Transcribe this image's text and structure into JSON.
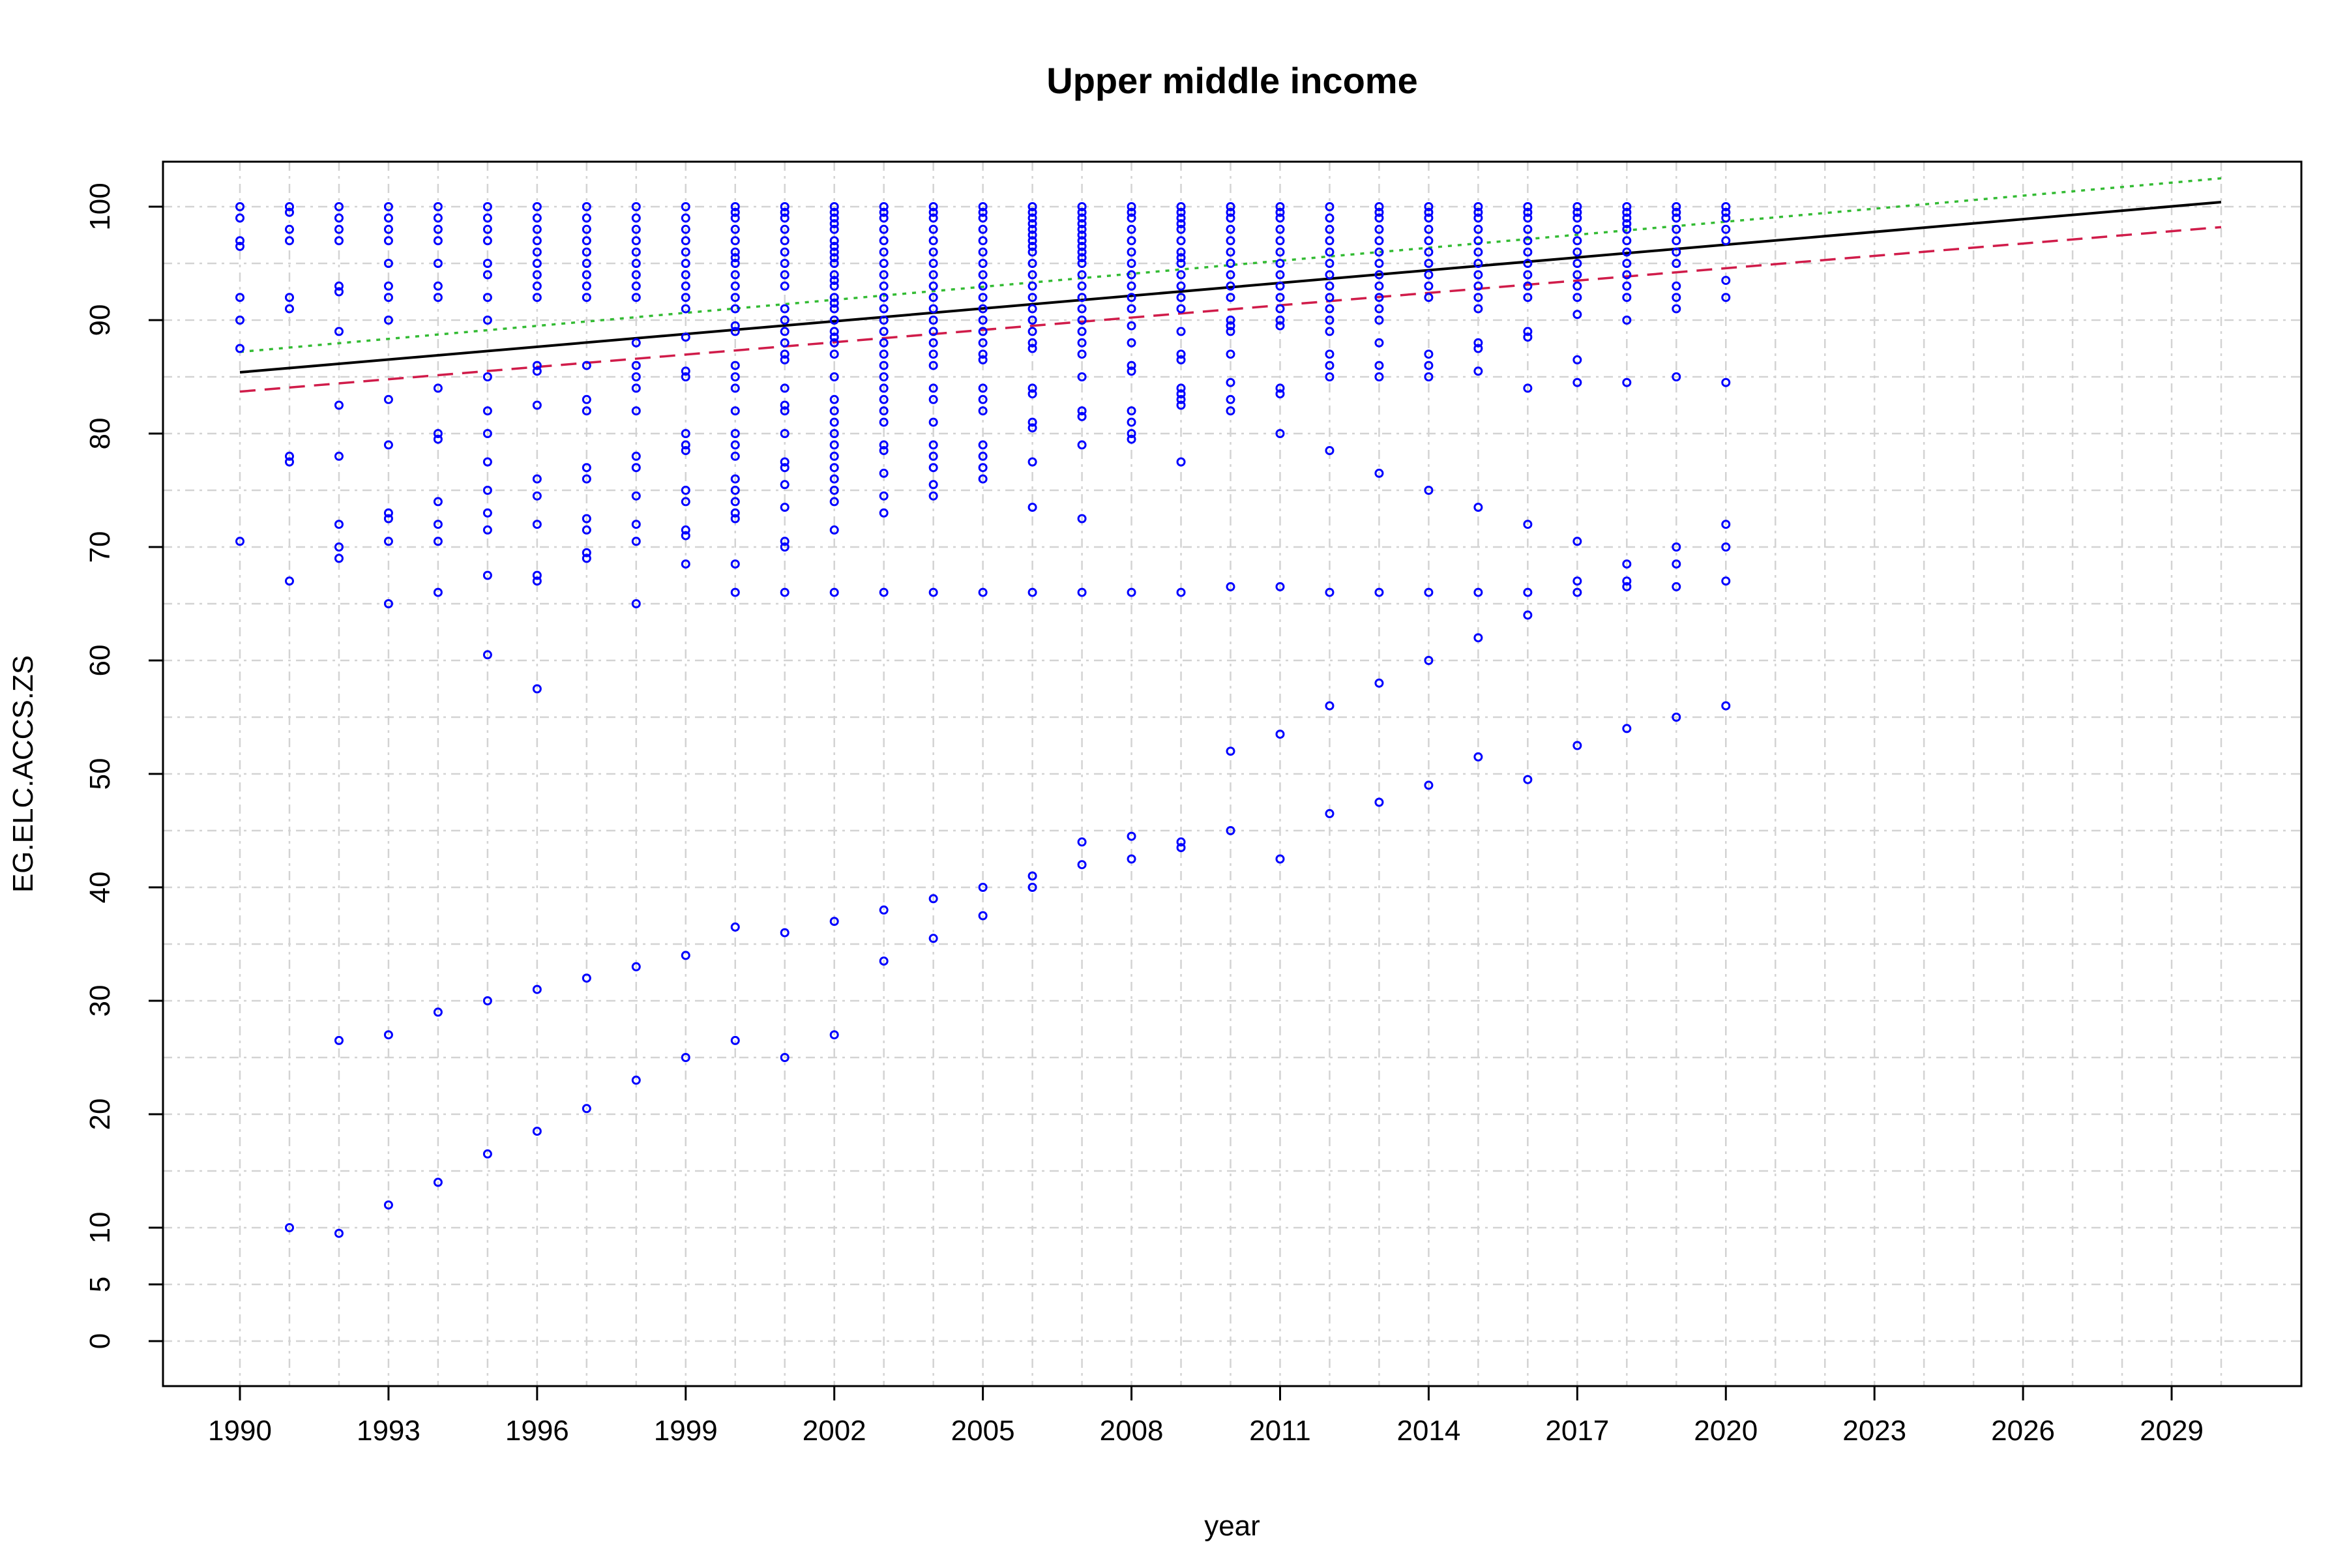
{
  "chart_data": {
    "type": "scatter",
    "title": "Upper middle income",
    "xlabel": "year",
    "ylabel": "EG.ELC.ACCS.ZS",
    "xlim": [
      1990,
      2030
    ],
    "ylim": [
      0,
      100
    ],
    "x_ticks": [
      "1990",
      "1993",
      "1996",
      "1999",
      "2002",
      "2005",
      "2008",
      "2011",
      "2014",
      "2017",
      "2020",
      "2023",
      "2026",
      "2029"
    ],
    "x_tick_values": [
      1990,
      1993,
      1996,
      1999,
      2002,
      2005,
      2008,
      2011,
      2014,
      2017,
      2020,
      2023,
      2026,
      2029
    ],
    "y_ticks": [
      "0",
      "5",
      "10",
      "20",
      "30",
      "40",
      "50",
      "60",
      "70",
      "80",
      "90",
      "100"
    ],
    "y_tick_values": [
      0,
      5,
      10,
      20,
      30,
      40,
      50,
      60,
      70,
      80,
      90,
      100
    ],
    "grid": true,
    "point_color": "#0000ff",
    "points_by_year": {
      "1990": [
        100,
        99,
        97,
        96.5,
        92,
        90,
        87.5,
        70.5
      ],
      "1991": [
        100,
        99.5,
        98,
        97,
        92,
        91,
        78,
        77.5,
        67,
        10
      ],
      "1992": [
        100,
        99,
        98,
        97,
        93,
        92.5,
        89,
        82.5,
        78,
        72,
        70,
        69,
        26.5,
        9.5
      ],
      "1993": [
        100,
        99,
        98,
        97,
        95,
        93,
        92,
        90,
        83,
        79,
        73,
        72.5,
        70.5,
        65,
        27,
        12
      ],
      "1994": [
        100,
        99,
        98,
        97,
        95,
        93,
        92,
        84,
        80,
        79.5,
        74,
        72,
        70.5,
        66,
        29,
        14
      ],
      "1995": [
        100,
        99,
        98,
        97,
        95,
        94,
        92,
        90,
        85,
        82,
        80,
        77.5,
        75,
        73,
        71.5,
        67.5,
        60.5,
        30,
        16.5
      ],
      "1996": [
        100,
        99,
        98,
        97,
        96,
        95,
        94,
        93,
        92,
        86,
        85.5,
        82.5,
        76,
        74.5,
        72,
        67.5,
        67,
        57.5,
        31,
        18.5
      ],
      "1997": [
        100,
        99,
        98,
        97,
        96,
        95,
        94,
        93,
        92,
        86,
        83,
        82,
        77,
        76,
        72.5,
        71.5,
        69.5,
        69,
        32,
        20.5
      ],
      "1998": [
        100,
        99,
        98,
        97,
        96,
        95,
        94,
        93,
        92,
        88,
        86,
        85,
        84,
        82,
        78,
        77,
        74.5,
        72,
        70.5,
        65,
        33,
        23
      ],
      "1999": [
        100,
        99,
        98,
        97,
        96,
        95,
        94,
        93,
        92,
        91,
        88.5,
        85.5,
        85,
        80,
        79,
        78.5,
        75,
        74,
        71.5,
        71,
        68.5,
        34,
        25
      ],
      "2000": [
        100,
        99.5,
        99,
        98,
        97,
        96,
        95.5,
        95,
        94,
        93,
        92,
        91,
        89.5,
        89,
        86,
        85,
        84,
        82,
        80,
        79,
        78,
        76,
        75,
        74,
        73,
        72.5,
        68.5,
        66,
        36.5,
        26.5
      ],
      "2001": [
        100,
        99.5,
        99,
        98,
        97,
        96,
        95,
        94,
        93,
        91,
        90,
        89,
        88,
        87,
        86.5,
        84,
        82.5,
        82,
        80,
        77.5,
        77,
        75.5,
        73.5,
        70.5,
        70,
        66,
        36,
        25
      ],
      "2002": [
        100,
        99.5,
        99,
        98.5,
        98,
        97,
        96.5,
        96,
        95.5,
        95,
        94,
        93.5,
        93,
        92,
        91.5,
        91,
        90,
        89,
        88.5,
        88,
        87,
        85,
        83,
        82,
        81,
        80,
        79,
        78,
        77,
        76,
        75,
        74,
        71.5,
        66,
        37,
        27
      ],
      "2003": [
        100,
        99.5,
        99,
        98,
        97,
        96,
        95,
        94,
        93,
        92,
        91,
        90,
        89,
        88,
        87,
        86,
        85,
        84,
        83,
        82,
        81,
        79,
        78.5,
        76.5,
        74.5,
        73,
        66,
        38,
        33.5
      ],
      "2004": [
        100,
        99.5,
        99,
        98,
        97,
        96,
        95,
        94,
        93,
        92,
        91,
        90,
        89,
        88,
        87,
        86,
        84,
        83,
        81,
        79,
        78,
        77,
        75.5,
        74.5,
        66,
        39,
        35.5
      ],
      "2005": [
        100,
        99.5,
        99,
        98,
        97,
        96,
        95,
        94,
        93,
        92,
        91,
        90,
        89,
        88,
        87,
        86.5,
        84,
        83,
        82,
        79,
        78,
        77,
        76,
        66,
        40,
        37.5
      ],
      "2006": [
        100,
        99.5,
        99,
        98.5,
        98,
        97.5,
        97,
        96.5,
        96,
        95,
        94,
        93,
        92,
        91,
        90,
        89,
        88,
        87.5,
        84,
        83.5,
        81,
        80.5,
        77.5,
        73.5,
        66,
        41,
        40
      ],
      "2007": [
        100,
        99.5,
        99,
        98.5,
        98,
        97.5,
        97,
        96.5,
        96,
        95.5,
        95,
        94,
        93,
        92,
        91,
        90,
        89,
        88,
        87,
        85,
        82,
        81.5,
        79,
        72.5,
        66,
        44,
        42
      ],
      "2008": [
        100,
        99.5,
        99,
        98,
        97,
        96,
        95,
        94,
        93,
        92,
        91,
        89.5,
        88,
        86,
        85.5,
        82,
        81,
        80,
        79.5,
        66,
        44.5,
        42.5
      ],
      "2009": [
        100,
        99.5,
        99,
        98.5,
        98,
        97,
        96,
        95.5,
        95,
        94,
        93,
        92,
        91,
        89,
        87,
        86.5,
        84,
        83.5,
        83,
        82.5,
        77.5,
        66,
        44,
        43.5
      ],
      "2010": [
        100,
        99.5,
        99,
        98,
        97,
        96,
        95,
        94,
        93,
        92,
        90,
        89.5,
        89,
        87,
        84.5,
        83,
        82,
        66.5,
        52,
        45
      ],
      "2011": [
        100,
        99.5,
        99,
        98,
        97,
        96,
        95,
        94,
        93,
        92,
        91,
        90,
        89.5,
        84,
        83.5,
        80,
        66.5,
        53.5,
        42.5
      ],
      "2012": [
        100,
        99,
        98,
        97,
        96,
        95,
        94,
        93,
        92,
        91,
        90,
        89,
        87,
        86,
        85,
        78.5,
        66,
        56,
        46.5
      ],
      "2013": [
        100,
        99.5,
        99,
        98,
        97,
        96,
        95,
        94,
        93,
        92,
        91,
        90,
        88,
        86,
        85,
        76.5,
        66,
        58,
        47.5
      ],
      "2014": [
        100,
        99.5,
        99,
        98,
        97,
        96,
        95,
        94,
        93,
        92,
        87,
        86,
        85,
        75,
        66,
        60,
        49
      ],
      "2015": [
        100,
        99.5,
        99,
        98,
        97,
        96,
        95,
        94,
        93,
        92,
        91,
        88,
        87.5,
        85.5,
        73.5,
        66,
        62,
        51.5
      ],
      "2016": [
        100,
        99.5,
        99,
        98,
        97,
        96,
        95,
        94,
        93,
        92,
        89,
        88.5,
        84,
        72,
        66,
        64,
        49.5
      ],
      "2017": [
        100,
        99.5,
        99,
        98,
        97,
        96,
        95,
        94,
        93,
        92,
        90.5,
        86.5,
        84.5,
        70.5,
        67,
        66,
        52.5
      ],
      "2018": [
        100,
        99.5,
        99,
        98.5,
        98,
        97,
        96,
        95,
        94,
        93,
        92,
        90,
        84.5,
        68.5,
        67,
        66.5,
        54
      ],
      "2019": [
        100,
        99.5,
        99,
        98,
        97,
        96,
        95,
        93,
        92,
        91,
        85,
        70,
        68.5,
        66.5,
        55
      ],
      "2020": [
        100,
        99.5,
        99,
        98,
        97,
        93.5,
        92,
        84.5,
        72,
        70,
        67,
        56
      ]
    },
    "lines": [
      {
        "style": "solid",
        "color": "#000000",
        "x": [
          1990,
          2030
        ],
        "y": [
          85.4,
          100.4
        ]
      },
      {
        "style": "dotted",
        "color": "#33bb33",
        "x": [
          1990,
          2030
        ],
        "y": [
          87.2,
          102.5
        ]
      },
      {
        "style": "dashed",
        "color": "#d01c4a",
        "x": [
          1990,
          2030
        ],
        "y": [
          83.7,
          98.2
        ]
      }
    ]
  }
}
